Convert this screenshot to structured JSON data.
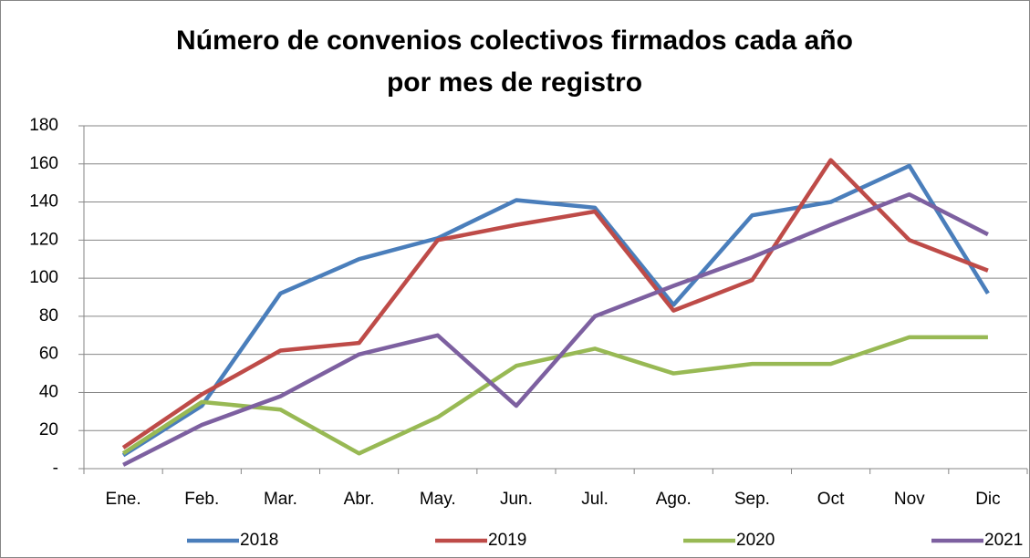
{
  "chart_data": {
    "type": "line",
    "title": [
      "Número de convenios colectivos firmados cada año",
      "por mes de registro"
    ],
    "categories": [
      "Ene.",
      "Feb.",
      "Mar.",
      "Abr.",
      "May.",
      "Jun.",
      "Jul.",
      "Ago.",
      "Sep.",
      "Oct",
      "Nov",
      "Dic"
    ],
    "series": [
      {
        "name": "2018",
        "color": "#4a7ebb",
        "values": [
          7,
          33,
          92,
          110,
          121,
          141,
          137,
          86,
          133,
          140,
          159,
          92
        ]
      },
      {
        "name": "2019",
        "color": "#be4b48",
        "values": [
          11,
          39,
          62,
          66,
          120,
          128,
          135,
          83,
          99,
          162,
          120,
          104
        ]
      },
      {
        "name": "2020",
        "color": "#98b954",
        "values": [
          8,
          35,
          31,
          8,
          27,
          54,
          63,
          50,
          55,
          55,
          69,
          69
        ]
      },
      {
        "name": "2021",
        "color": "#7d60a0",
        "values": [
          2,
          23,
          38,
          60,
          70,
          33,
          80,
          96,
          111,
          128,
          144,
          123
        ]
      }
    ],
    "ylim": [
      0,
      180
    ],
    "yticks": [
      {
        "value": 0,
        "label": "-"
      },
      20,
      40,
      60,
      80,
      100,
      120,
      140,
      160,
      180
    ],
    "grid": true,
    "legend": "bottom"
  }
}
